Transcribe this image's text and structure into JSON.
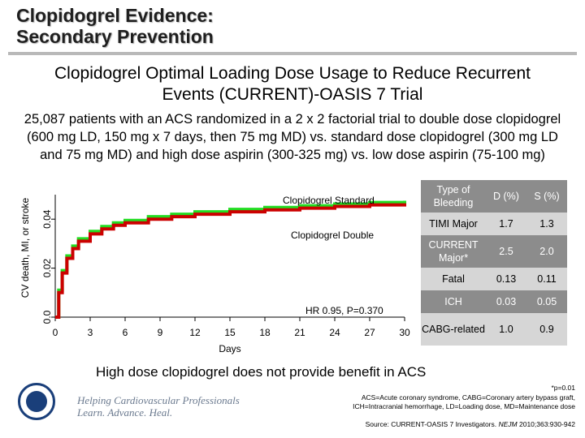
{
  "slide": {
    "title_line1": "Clopidogrel Evidence:",
    "title_line2": "Secondary Prevention",
    "subtitle_line1": "Clopidogrel Optimal Loading Dose Usage to Reduce Recurrent",
    "subtitle_line2": "Events (CURRENT)-OASIS 7 Trial",
    "description": "25,087 patients with an ACS randomized in a 2 x 2 factorial trial to double dose clopidogrel (600 mg LD, 150 mg x 7 days, then 75 mg MD) vs. standard dose clopidogrel (300 mg LD and 75 mg MD) and high dose aspirin (300-325 mg) vs. low dose aspirin (75-100 mg)",
    "conclusion": "High dose clopidogrel does not provide benefit in ACS",
    "footnote_p": "*p=0.01",
    "footnote_abbrev_1": "ACS=Acute coronary syndrome, CABG=Coronary artery bypass graft,",
    "footnote_abbrev_2": "ICH=Intracranial hemorrhage, LD=Loading dose, MD=Maintenance dose",
    "source_prefix": "Source: CURRENT-OASIS 7 Investigators. ",
    "source_journal": "NEJM",
    "source_suffix": " 2010;363:930-942",
    "tagline_1": "Helping Cardiovascular Professionals",
    "tagline_2": "Learn. Advance. Heal."
  },
  "colors": {
    "standard": "#22dd22",
    "double": "#cc0000",
    "table_dark": "#8c8c8c",
    "table_light": "#d6d6d6",
    "logo_blue": "#1a3f7a"
  },
  "table": {
    "headers": [
      "Type of Bleeding",
      "D (%)",
      "S (%)"
    ],
    "rows": [
      [
        "TIMI Major",
        "1.7",
        "1.3"
      ],
      [
        "CURRENT Major*",
        "2.5",
        "2.0"
      ],
      [
        "Fatal",
        "0.13",
        "0.11"
      ],
      [
        "ICH",
        "0.03",
        "0.05"
      ],
      [
        "CABG-related",
        "1.0",
        "0.9"
      ]
    ]
  },
  "chart_data": {
    "type": "line",
    "xlabel": "Days",
    "ylabel": "CV death, MI, or stroke",
    "xlim": [
      0,
      30
    ],
    "ylim": [
      0,
      0.05
    ],
    "xticks": [
      "0",
      "3",
      "6",
      "9",
      "12",
      "15",
      "18",
      "21",
      "24",
      "27",
      "30"
    ],
    "yticks": [
      "0.0",
      "0.02",
      "0.04"
    ],
    "annotation": "HR 0.95, P=0.370",
    "series": [
      {
        "name": "Clopidogrel Standard",
        "color": "#22dd22",
        "x": [
          0,
          0.3,
          0.6,
          1,
          1.5,
          2,
          3,
          4,
          5,
          6,
          8,
          10,
          12,
          15,
          18,
          21,
          24,
          27,
          30
        ],
        "y": [
          0.0,
          0.011,
          0.019,
          0.025,
          0.029,
          0.032,
          0.035,
          0.037,
          0.0385,
          0.0395,
          0.041,
          0.042,
          0.043,
          0.044,
          0.0448,
          0.0455,
          0.0462,
          0.0468,
          0.0475
        ]
      },
      {
        "name": "Clopidogrel Double",
        "color": "#cc0000",
        "x": [
          0,
          0.3,
          0.6,
          1,
          1.5,
          2,
          3,
          4,
          5,
          6,
          8,
          10,
          12,
          15,
          18,
          21,
          24,
          27,
          30
        ],
        "y": [
          0.0,
          0.01,
          0.018,
          0.024,
          0.028,
          0.031,
          0.034,
          0.036,
          0.0375,
          0.0385,
          0.04,
          0.041,
          0.042,
          0.043,
          0.0438,
          0.0445,
          0.0452,
          0.0458,
          0.0465
        ]
      }
    ]
  }
}
